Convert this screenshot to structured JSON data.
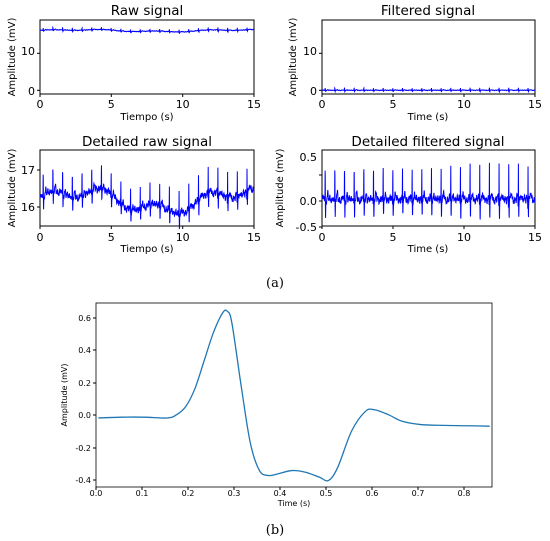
{
  "captions": [
    "(a)",
    "(b)"
  ],
  "colors": {
    "raw_trace": "#0000ff",
    "beat_trace": "#1f77b4",
    "axes": "#000000"
  },
  "chart_data": [
    {
      "type": "line",
      "title": "Raw signal",
      "xlabel": "Tiempo (s)",
      "ylabel": "Amplitude (mV)",
      "xlim": [
        0,
        15
      ],
      "ylim": [
        -1,
        19
      ],
      "xticks": [
        "0",
        "5",
        "10",
        "15"
      ],
      "yticks": [
        "0",
        "10"
      ],
      "series": [
        {
          "baseline": 16.1,
          "heart_rate_bps": 1.47,
          "r_peak_amplitude": 0.7
        }
      ]
    },
    {
      "type": "line",
      "title": "Filtered signal",
      "xlabel": "Time (s)",
      "ylabel": "Amplitude (mV)",
      "xlim": [
        0,
        15
      ],
      "ylim": [
        -1,
        19
      ],
      "xticks": [
        "0",
        "5",
        "10",
        "15"
      ],
      "yticks": [
        "0",
        "10"
      ],
      "series": [
        {
          "baseline": 0.0,
          "heart_rate_bps": 1.47,
          "r_peak_amplitude": 0.7
        }
      ]
    },
    {
      "type": "line",
      "title": "Detailed raw signal",
      "xlabel": "Tiempo (s)",
      "ylabel": "Amplitude (mV)",
      "xlim": [
        0,
        15
      ],
      "ylim": [
        15.45,
        17.45
      ],
      "xticks": [
        "0",
        "5",
        "10",
        "15"
      ],
      "yticks": [
        "16",
        "17"
      ],
      "series": [
        {
          "baseline": 16.1,
          "heart_rate_bps": 1.47,
          "r_peak_amplitude": 0.7
        }
      ]
    },
    {
      "type": "line",
      "title": "Detailed filtered signal",
      "xlabel": "Time (s)",
      "ylabel": "Amplitude (mV)",
      "xlim": [
        0,
        15
      ],
      "ylim": [
        -0.5,
        0.95
      ],
      "xticks": [
        "0",
        "5",
        "10",
        "15"
      ],
      "yticks": [
        "0.5",
        "0.0",
        "-0.5"
      ],
      "series": [
        {
          "baseline": 0.0,
          "heart_rate_bps": 1.47,
          "r_peak_amplitude": 0.7
        }
      ]
    },
    {
      "type": "line",
      "title": "",
      "xlabel": "Time (s)",
      "ylabel": "Amplitude (mV)",
      "xlim": [
        -0.005,
        0.855
      ],
      "ylim": [
        -0.42,
        0.7
      ],
      "xticks": [
        "0.0",
        "0.1",
        "0.2",
        "0.3",
        "0.4",
        "0.5",
        "0.6",
        "0.7",
        "0.8"
      ],
      "yticks": [
        "0.6",
        "0.4",
        "0.2",
        "0.0",
        "-0.2",
        "-0.4"
      ],
      "series": [
        {
          "x": [
            0,
            0.05,
            0.1,
            0.15,
            0.17,
            0.19,
            0.21,
            0.23,
            0.25,
            0.27,
            0.28,
            0.29,
            0.31,
            0.33,
            0.35,
            0.37,
            0.39,
            0.42,
            0.45,
            0.48,
            0.5,
            0.52,
            0.55,
            0.58,
            0.6,
            0.63,
            0.66,
            0.7,
            0.75,
            0.8,
            0.85
          ],
          "y": [
            0.0,
            0.005,
            0.005,
            0.0,
            0.02,
            0.07,
            0.18,
            0.35,
            0.52,
            0.64,
            0.65,
            0.58,
            0.2,
            -0.15,
            -0.32,
            -0.35,
            -0.34,
            -0.32,
            -0.33,
            -0.36,
            -0.38,
            -0.3,
            -0.08,
            0.04,
            0.05,
            0.02,
            -0.02,
            -0.04,
            -0.045,
            -0.047,
            -0.05
          ]
        }
      ]
    }
  ]
}
